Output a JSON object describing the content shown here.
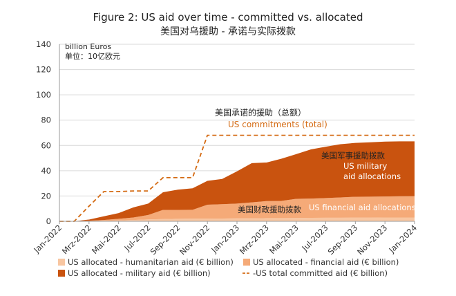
{
  "chart_data": {
    "type": "area",
    "title": "Figure 2: US aid over time - committed vs. allocated",
    "subtitle": "美国对乌援助 - 承诺与实际拨款",
    "unit_label": "billion Euros",
    "unit_label_cn": "单位：10亿欧元",
    "ylim": [
      0,
      140
    ],
    "yticks": [
      0,
      20,
      40,
      60,
      80,
      100,
      120,
      140
    ],
    "x_tick_labels": [
      "Jan-2022",
      "Mrz-2022",
      "Mai-2022",
      "Jul-2022",
      "Sep-2022",
      "Nov-2022",
      "Jan-2023",
      "Mrz-2023",
      "Mai-2023",
      "Jul-2023",
      "Sep-2023",
      "Nov-2023",
      "Jan-2024"
    ],
    "x": [
      "Jan-2022",
      "Feb-2022",
      "Mar-2022",
      "Apr-2022",
      "May-2022",
      "Jun-2022",
      "Jul-2022",
      "Aug-2022",
      "Sep-2022",
      "Oct-2022",
      "Nov-2022",
      "Dec-2022",
      "Jan-2023",
      "Feb-2023",
      "Mar-2023",
      "Apr-2023",
      "May-2023",
      "Jun-2023",
      "Jul-2023",
      "Aug-2023",
      "Sep-2023",
      "Oct-2023",
      "Nov-2023",
      "Dec-2023",
      "Jan-2024"
    ],
    "series": [
      {
        "name": "US allocated - humanitarian aid (€ billion)",
        "color": "#f8c6a1",
        "values": [
          0,
          0,
          0.2,
          0.4,
          0.7,
          1.0,
          1.5,
          1.8,
          2.0,
          2.1,
          2.1,
          2.2,
          2.3,
          2.4,
          2.5,
          2.5,
          2.6,
          2.7,
          2.8,
          2.8,
          2.9,
          2.9,
          3.0,
          3.0,
          3.0
        ]
      },
      {
        "name": "US allocated - financial aid (€ billion)",
        "color": "#f5aa78",
        "values": [
          0,
          0,
          0.3,
          0.6,
          1.3,
          2.0,
          3.5,
          7.2,
          7.0,
          7.0,
          11.0,
          11.3,
          11.7,
          12.6,
          13.5,
          13.6,
          15.2,
          15.3,
          15.6,
          16.1,
          16.5,
          16.6,
          16.6,
          16.8,
          16.9
        ]
      },
      {
        "name": "US allocated - military aid (€ billion)",
        "color": "#c9530f",
        "values": [
          0,
          0,
          0.9,
          3.0,
          4.5,
          8.0,
          9.0,
          14.0,
          16.0,
          17.0,
          18.9,
          20.0,
          25.5,
          31.0,
          30.5,
          33.4,
          35.3,
          38.9,
          40.6,
          42.1,
          42.6,
          43.0,
          43.4,
          43.4,
          43.3
        ]
      },
      {
        "name": "-US total committed aid (€ billion)",
        "color": "#d46a12",
        "dashed": true,
        "values": [
          0,
          0,
          12,
          23.5,
          23.5,
          24,
          24,
          34.5,
          34.5,
          34.5,
          68,
          68,
          68,
          68,
          68,
          68,
          68,
          68,
          68,
          68,
          68,
          68,
          68,
          68,
          68
        ]
      }
    ],
    "annotations": {
      "commitments_cn": "美国承诺的援助（总额）",
      "commitments_en": "US commitments (total)",
      "military_cn": "美国军事援助拨款",
      "military_en_1": "US military",
      "military_en_2": "aid allocations",
      "financial_cn": "美国财政援助拨款",
      "financial_en": "US financial aid allocations"
    },
    "grid": "horizontal",
    "legend": "bottom"
  },
  "colors": {
    "grid": "#d9d9d9",
    "axis": "#999999"
  }
}
